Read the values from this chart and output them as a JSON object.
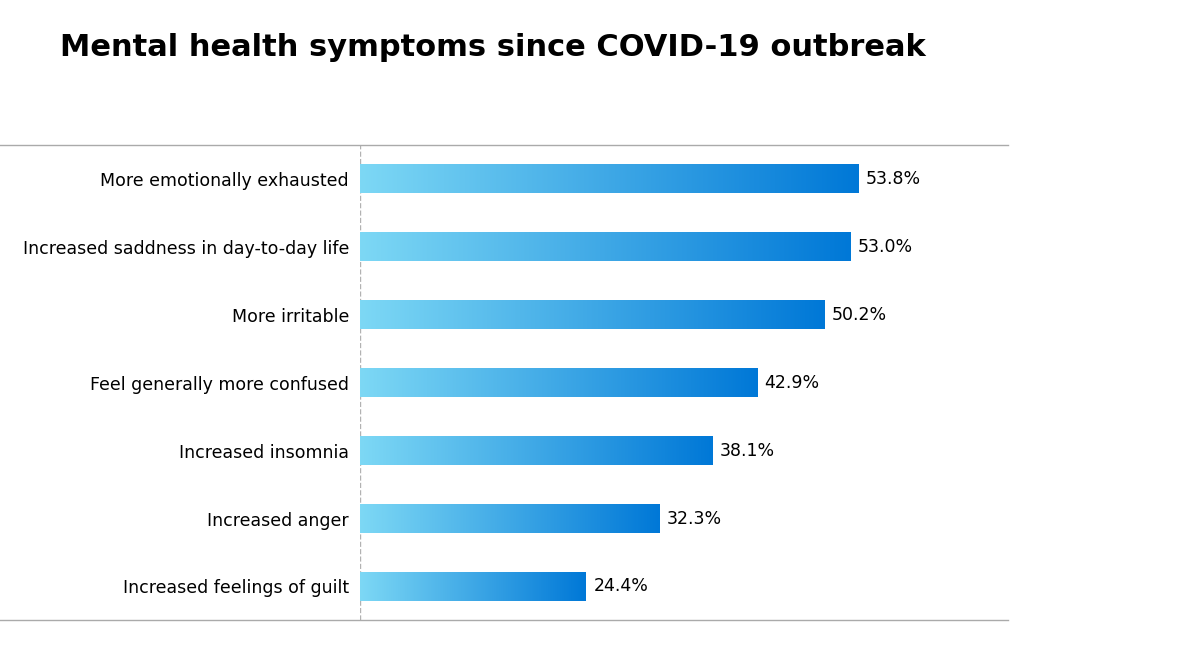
{
  "title": "Mental health symptoms since COVID-19 outbreak",
  "categories": [
    "More emotionally exhausted",
    "Increased saddness in day-to-day life",
    "More irritable",
    "Feel generally more confused",
    "Increased insomnia",
    "Increased anger",
    "Increased feelings of guilt"
  ],
  "values": [
    53.8,
    53.0,
    50.2,
    42.9,
    38.1,
    32.3,
    24.4
  ],
  "labels": [
    "53.8%",
    "53.0%",
    "50.2%",
    "42.9%",
    "38.1%",
    "32.3%",
    "24.4%"
  ],
  "bar_color_left": "#7DD8F5",
  "bar_color_right": "#0078D7",
  "bar_height": 0.42,
  "xlim": [
    0,
    70
  ],
  "background_color": "#ffffff",
  "title_fontsize": 22,
  "label_fontsize": 12.5,
  "value_fontsize": 12.5,
  "dashed_line_color": "#aaaaaa",
  "line_color": "#aaaaaa",
  "text_color": "#000000"
}
